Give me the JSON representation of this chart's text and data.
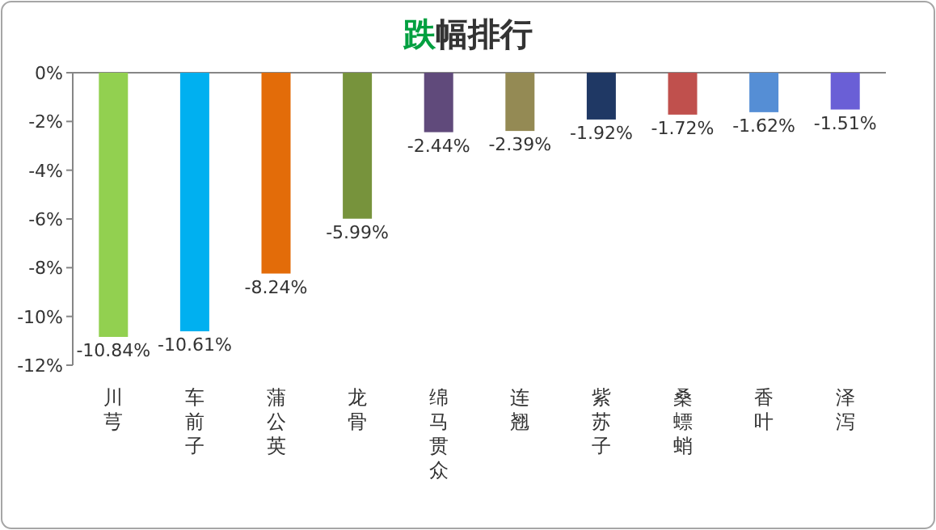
{
  "chart_data": {
    "type": "bar",
    "title": "跌幅排行",
    "categories": [
      "川芎",
      "车前子",
      "蒲公英",
      "龙骨",
      "绵马贯众",
      "连翘",
      "紫苏子",
      "桑螵蛸",
      "香叶",
      "泽泻"
    ],
    "values": [
      -10.84,
      -10.61,
      -8.24,
      -5.99,
      -2.44,
      -2.39,
      -1.92,
      -1.72,
      -1.62,
      -1.51
    ],
    "value_labels": [
      "-10.84%",
      "-10.61%",
      "-8.24%",
      "-5.99%",
      "-2.44%",
      "-2.39%",
      "-1.92%",
      "-1.72%",
      "-1.62%",
      "-1.51%"
    ],
    "colors": [
      "#92d050",
      "#00b0f0",
      "#e36c09",
      "#77933c",
      "#604a7b",
      "#948a54",
      "#1f3864",
      "#c0504d",
      "#558ed5",
      "#6a5fd6"
    ],
    "ylim": [
      -12,
      0
    ],
    "yticks": [
      {
        "value": 0,
        "label": "0%"
      },
      {
        "value": -2,
        "label": "-2%"
      },
      {
        "value": -4,
        "label": "-4%"
      },
      {
        "value": -6,
        "label": "-6%"
      },
      {
        "value": -8,
        "label": "-8%"
      },
      {
        "value": -10,
        "label": "-10%"
      },
      {
        "value": -12,
        "label": "-12%"
      }
    ],
    "grid": false
  }
}
